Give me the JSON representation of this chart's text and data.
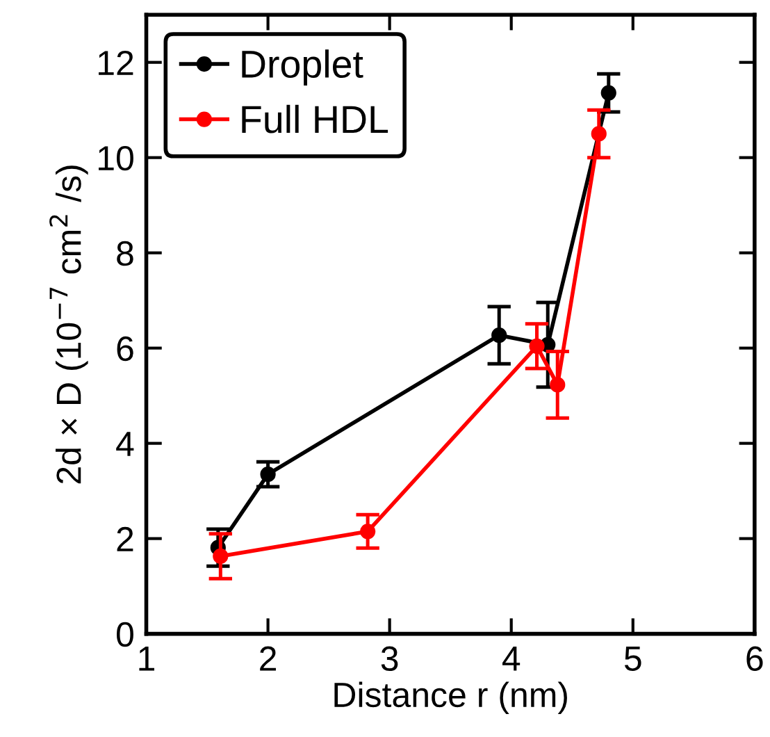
{
  "chart_data": {
    "type": "line",
    "xlabel": "Distance r (nm)",
    "ylabel": "2d × D (10$^{−7}$ cm$^{2}$ /s)",
    "xlim": [
      1,
      6
    ],
    "xticks": [
      1,
      2,
      3,
      4,
      5,
      6
    ],
    "ylim": [
      0,
      13
    ],
    "yticks": [
      0,
      2,
      4,
      6,
      8,
      10,
      12
    ],
    "grid": false,
    "legend": "top left",
    "marker": "circle",
    "line_style": "solid",
    "series": [
      {
        "name": "Droplet",
        "color": "#000000",
        "x": [
          1.59,
          2.0,
          3.9,
          4.3,
          4.8
        ],
        "values": [
          1.81,
          3.35,
          6.27,
          6.07,
          11.36
        ],
        "errors": [
          0.39,
          0.26,
          0.6,
          0.89,
          0.4
        ]
      },
      {
        "name": "Full HDL",
        "color": "#ff0000",
        "x": [
          1.61,
          2.82,
          4.21,
          4.38,
          4.72
        ],
        "values": [
          1.63,
          2.15,
          6.04,
          5.23,
          10.5
        ],
        "errors": [
          0.47,
          0.35,
          0.47,
          0.7,
          0.5
        ]
      }
    ]
  }
}
